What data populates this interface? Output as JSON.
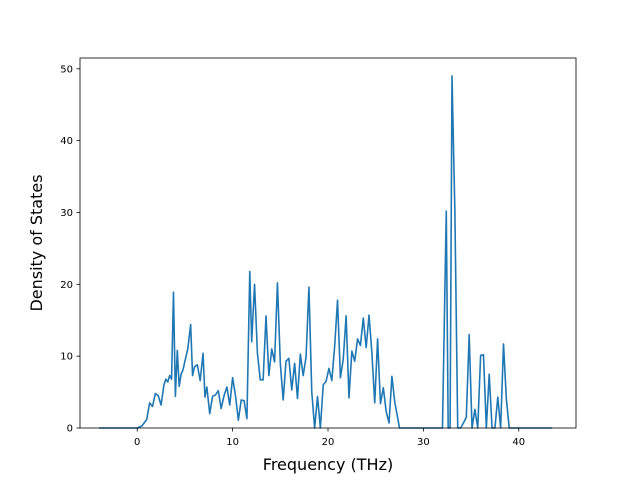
{
  "chart_data": {
    "type": "line",
    "title": "",
    "xlabel": "Frequency (THz)",
    "ylabel": "Density of States",
    "xlim": [
      -6.0,
      46.0
    ],
    "ylim": [
      0,
      51.5
    ],
    "xticks": [
      0,
      10,
      20,
      30,
      40
    ],
    "yticks": [
      0,
      10,
      20,
      30,
      40,
      50
    ],
    "grid": false,
    "legend": "none",
    "series": [
      {
        "color": "#1f77b4",
        "x": [
          -4.0,
          -3.0,
          -2.0,
          -1.0,
          0.0,
          0.5,
          1.0,
          1.3,
          1.6,
          1.9,
          2.2,
          2.5,
          2.8,
          3.0,
          3.2,
          3.4,
          3.6,
          3.8,
          4.0,
          4.2,
          4.4,
          4.6,
          4.8,
          5.0,
          5.3,
          5.6,
          5.8,
          6.0,
          6.3,
          6.6,
          6.9,
          7.1,
          7.3,
          7.6,
          7.9,
          8.2,
          8.5,
          8.8,
          9.1,
          9.4,
          9.7,
          10.0,
          10.3,
          10.6,
          10.9,
          11.2,
          11.5,
          11.8,
          12.0,
          12.3,
          12.6,
          12.9,
          13.2,
          13.5,
          13.8,
          14.1,
          14.4,
          14.7,
          15.0,
          15.3,
          15.6,
          15.9,
          16.2,
          16.5,
          16.8,
          17.1,
          17.4,
          17.7,
          18.0,
          18.3,
          18.6,
          18.9,
          19.2,
          19.5,
          19.8,
          20.1,
          20.4,
          20.7,
          21.0,
          21.3,
          21.6,
          21.9,
          22.2,
          22.5,
          22.8,
          23.1,
          23.4,
          23.7,
          24.0,
          24.3,
          24.6,
          24.9,
          25.2,
          25.5,
          25.8,
          26.1,
          26.4,
          26.7,
          27.0,
          27.5,
          28.0,
          29.0,
          30.0,
          31.0,
          32.0,
          32.4,
          32.6,
          32.8,
          33.0,
          33.3,
          33.6,
          33.9,
          34.2,
          34.5,
          34.8,
          35.1,
          35.4,
          35.7,
          36.0,
          36.3,
          36.6,
          36.9,
          37.2,
          37.5,
          37.8,
          38.1,
          38.4,
          38.7,
          39.0,
          39.5,
          40.0,
          41.0,
          42.0,
          43.5
        ],
        "y": [
          0,
          0,
          0,
          0,
          0,
          0.3,
          1.2,
          3.5,
          3.0,
          4.8,
          4.5,
          3.2,
          6.0,
          6.8,
          6.4,
          7.3,
          6.8,
          18.9,
          4.4,
          10.8,
          5.8,
          7.5,
          8.1,
          9.3,
          11.0,
          14.4,
          7.3,
          8.5,
          8.8,
          6.6,
          10.4,
          4.3,
          5.7,
          2.0,
          4.4,
          4.6,
          5.2,
          2.7,
          4.5,
          5.7,
          3.2,
          7.0,
          4.5,
          1.1,
          3.9,
          3.8,
          1.3,
          21.8,
          12.0,
          20.0,
          10.4,
          6.7,
          6.7,
          15.6,
          7.3,
          11.0,
          9.2,
          20.2,
          9.0,
          3.9,
          9.3,
          9.7,
          5.3,
          9.0,
          4.1,
          10.3,
          7.3,
          9.9,
          19.6,
          5.0,
          0,
          4.4,
          0,
          6.0,
          6.5,
          8.3,
          6.6,
          11.4,
          17.8,
          7.0,
          9.6,
          15.6,
          4.2,
          10.7,
          9.3,
          12.4,
          11.5,
          15.3,
          11.2,
          15.7,
          10.5,
          3.5,
          12.4,
          3.4,
          5.6,
          2.3,
          0.7,
          7.2,
          3.6,
          0,
          0,
          0,
          0,
          0,
          0,
          30.2,
          0,
          0,
          49.0,
          30.3,
          0,
          0,
          0.7,
          1.5,
          13.0,
          0,
          2.6,
          0,
          10.1,
          10.2,
          0,
          7.5,
          0,
          0,
          4.3,
          0,
          11.7,
          4.0,
          0,
          0,
          0,
          0,
          0,
          0
        ]
      }
    ]
  }
}
